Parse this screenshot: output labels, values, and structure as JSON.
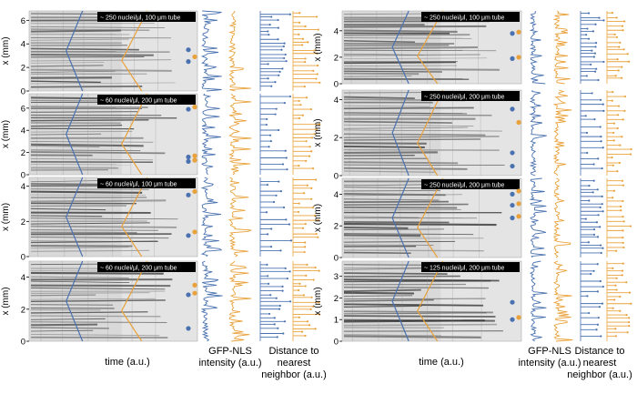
{
  "figure": {
    "left": {
      "panels": [
        {
          "badge": "~ 250 nuclei/μl, 100 μm tube",
          "ticks": [
            "0",
            "2",
            "4",
            "6"
          ],
          "ymax": 6.8,
          "dots": [
            {
              "c": "blue",
              "y": 3.5
            },
            {
              "c": "orange",
              "y": 2.9
            },
            {
              "c": "blue",
              "y": 2.5
            }
          ]
        },
        {
          "badge": "~ 60 nuclei/μl, 200 μm tube",
          "ticks": [
            "0",
            "2",
            "4",
            "6"
          ],
          "ymax": 7.3,
          "dots": [
            {
              "c": "blue",
              "y": 5.9
            },
            {
              "c": "orange",
              "y": 6.1
            },
            {
              "c": "blue",
              "y": 1.6
            },
            {
              "c": "orange",
              "y": 1.7
            },
            {
              "c": "blue",
              "y": 1.2
            },
            {
              "c": "orange",
              "y": 1.3
            }
          ]
        },
        {
          "badge": "~ 60 nuclei/μl, 100 μm tube",
          "ticks": [
            "0",
            "2",
            "4"
          ],
          "ymax": 4.5,
          "dots": [
            {
              "c": "blue",
              "y": 3.5
            },
            {
              "c": "orange",
              "y": 3.7
            },
            {
              "c": "blue",
              "y": 1.2
            },
            {
              "c": "orange",
              "y": 1.4
            }
          ]
        },
        {
          "badge": "~ 60 nuclei/μl, 200 μm tube",
          "ticks": [
            "0",
            "2",
            "4"
          ],
          "ymax": 5.0,
          "dots": [
            {
              "c": "orange",
              "y": 3.5
            },
            {
              "c": "blue",
              "y": 2.9
            },
            {
              "c": "orange",
              "y": 3.0
            },
            {
              "c": "blue",
              "y": 0.8
            }
          ]
        }
      ],
      "xlabel": "time (a.u.)",
      "col1_label": [
        "GFP-NLS",
        "intensity (a.u.)"
      ],
      "col2_label": [
        "Distance to",
        "nearest",
        "neighbor (a.u.)"
      ]
    },
    "right": {
      "panels": [
        {
          "badge": "~ 250 nuclei/μl, 100 μm tube",
          "ticks": [
            "0",
            "2",
            "4"
          ],
          "ymax": 5.5,
          "dots": [
            {
              "c": "blue",
              "y": 3.8
            },
            {
              "c": "orange",
              "y": 3.9
            },
            {
              "c": "blue",
              "y": 1.9
            },
            {
              "c": "orange",
              "y": 2.0
            }
          ]
        },
        {
          "badge": "~ 250 nuclei/μl, 200 μm tube",
          "ticks": [
            "0",
            "2",
            "4"
          ],
          "ymax": 4.5,
          "dots": [
            {
              "c": "blue",
              "y": 3.5
            },
            {
              "c": "orange",
              "y": 2.8
            },
            {
              "c": "blue",
              "y": 1.2
            },
            {
              "c": "blue",
              "y": 0.5
            }
          ]
        },
        {
          "badge": "~ 250 nuclei/μl, 200 μm tube",
          "ticks": [
            "0",
            "2",
            "4"
          ],
          "ymax": 5.0,
          "dots": [
            {
              "c": "blue",
              "y": 4.0
            },
            {
              "c": "orange",
              "y": 4.2
            },
            {
              "c": "blue",
              "y": 3.3
            },
            {
              "c": "orange",
              "y": 3.4
            },
            {
              "c": "blue",
              "y": 2.5
            },
            {
              "c": "orange",
              "y": 2.6
            }
          ]
        },
        {
          "badge": "~ 125 nuclei/μl, 200 μm tube",
          "ticks": [
            "0",
            "1",
            "2",
            "3"
          ],
          "ymax": 3.7,
          "dots": [
            {
              "c": "blue",
              "y": 1.8
            },
            {
              "c": "blue",
              "y": 1.0
            },
            {
              "c": "orange",
              "y": 1.1
            }
          ]
        }
      ],
      "xlabel": "time (a.u.)",
      "col1_label": [
        "GFP-NLS",
        "intensity (a.u.)"
      ],
      "col2_label": [
        "Distance to",
        "nearest",
        "neighbor (a.u.)"
      ]
    },
    "ylabel": "x (mm)",
    "colors": {
      "blue": "#4a72b0",
      "orange": "#e9a23b",
      "badge_bg": "#000000",
      "badge_fg": "#ffffff"
    }
  }
}
